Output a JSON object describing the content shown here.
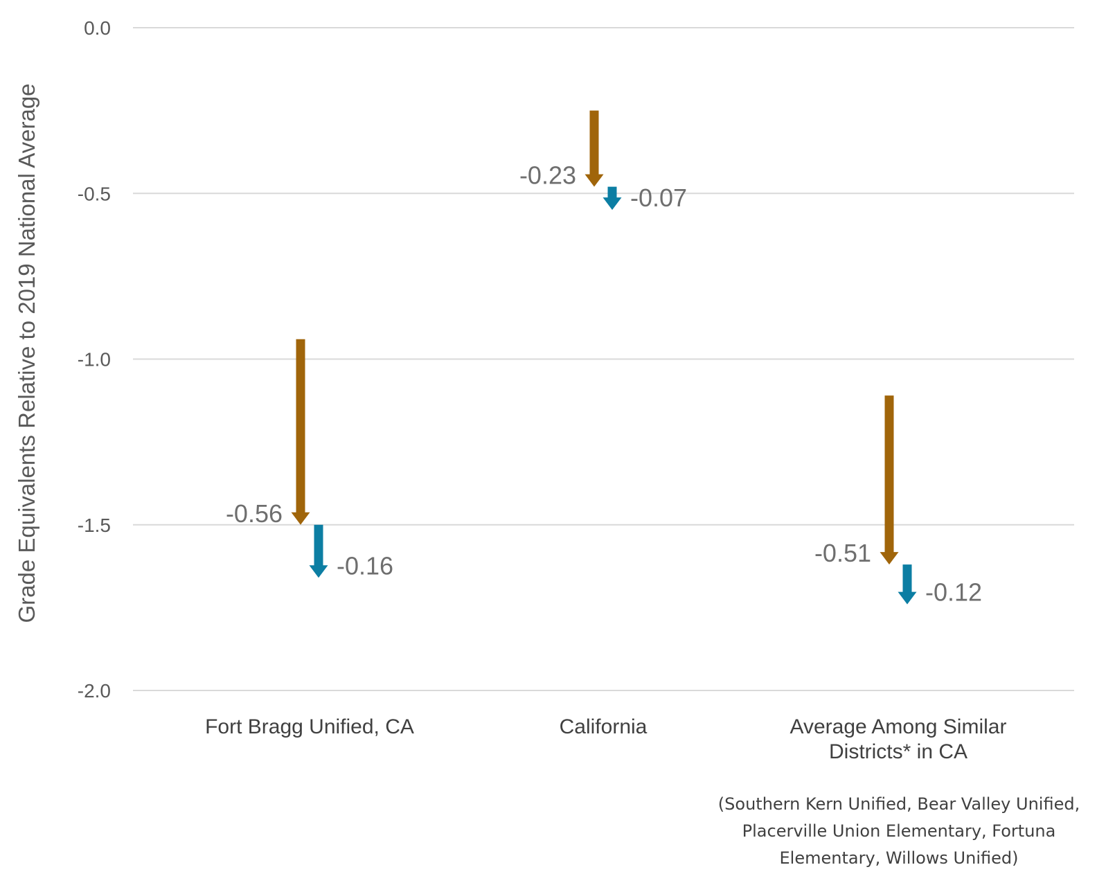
{
  "chart_data": {
    "type": "arrow",
    "ylabel": "Grade Equivalents Relative to 2019 National Average",
    "ylim": [
      -2.0,
      0.0
    ],
    "yticks": [
      0.0,
      -0.5,
      -1.0,
      -1.5,
      -2.0
    ],
    "ytick_labels": [
      "0.0",
      "-0.5",
      "-1.0",
      "-1.5",
      "-2.0"
    ],
    "grid": true,
    "categories": [
      {
        "label_lines": [
          "Fort Bragg Unified, CA"
        ],
        "arrows": [
          {
            "start": -0.94,
            "end": -1.5,
            "change_label": "-0.56",
            "color": "#a0650a"
          },
          {
            "start": -1.5,
            "end": -1.66,
            "change_label": "-0.16",
            "color": "#0c7ea3"
          }
        ]
      },
      {
        "label_lines": [
          "California"
        ],
        "arrows": [
          {
            "start": -0.25,
            "end": -0.48,
            "change_label": "-0.23",
            "color": "#a0650a"
          },
          {
            "start": -0.48,
            "end": -0.55,
            "change_label": "-0.07",
            "color": "#0c7ea3"
          }
        ]
      },
      {
        "label_lines": [
          "Average Among Similar",
          "Districts* in CA"
        ],
        "arrows": [
          {
            "start": -1.11,
            "end": -1.62,
            "change_label": "-0.51",
            "color": "#a0650a"
          },
          {
            "start": -1.62,
            "end": -1.74,
            "change_label": "-0.12",
            "color": "#0c7ea3"
          }
        ]
      }
    ],
    "footnote_lines": [
      "(Southern Kern Unified, Bear Valley Unified,",
      "Placerville Union Elementary, Fortuna",
      "Elementary, Willows Unified)"
    ]
  }
}
